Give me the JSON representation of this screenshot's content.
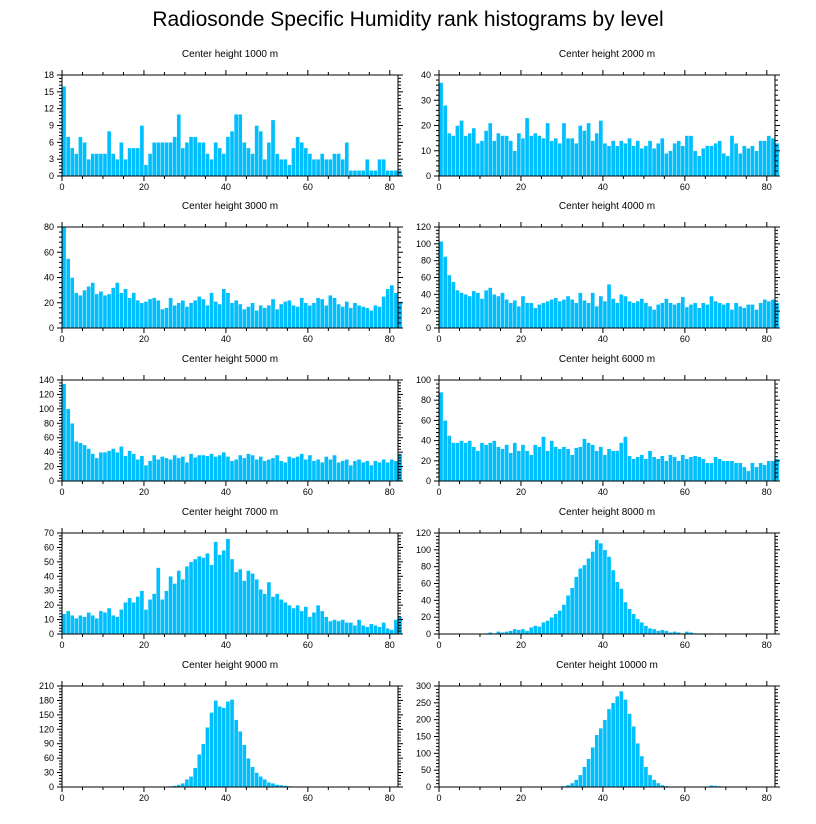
{
  "title": "Radiosonde Specific Humidity rank histograms by level",
  "colors": {
    "bar": "#00bfff",
    "bar_edge": "#ffffff",
    "axis": "#000000",
    "background": "#ffffff"
  },
  "chart_data": [
    {
      "type": "bar",
      "title": "Center height 1000 m",
      "xlim": [
        0,
        82
      ],
      "xticks": [
        0,
        20,
        40,
        60,
        80
      ],
      "ylim": [
        0,
        18
      ],
      "yticks": [
        0,
        3,
        6,
        9,
        12,
        15,
        18
      ],
      "values": [
        16,
        7,
        5,
        4,
        7,
        6,
        3,
        4,
        4,
        4,
        4,
        8,
        4,
        3,
        6,
        3,
        5,
        5,
        5,
        9,
        2,
        4,
        6,
        6,
        6,
        6,
        6,
        7,
        11,
        5,
        6,
        7,
        7,
        6,
        6,
        4,
        3,
        6,
        5,
        4,
        7,
        8,
        11,
        11,
        6,
        5,
        4,
        9,
        8,
        3,
        6,
        10,
        4,
        3,
        3,
        2,
        5,
        7,
        6,
        5,
        4,
        3,
        3,
        4,
        3,
        3,
        4,
        4,
        3,
        6,
        1,
        1,
        1,
        1,
        3,
        1,
        1,
        3,
        3,
        1,
        1,
        1,
        1
      ]
    },
    {
      "type": "bar",
      "title": "Center height 2000 m",
      "xlim": [
        0,
        82
      ],
      "xticks": [
        0,
        20,
        40,
        60,
        80
      ],
      "ylim": [
        0,
        40
      ],
      "yticks": [
        0,
        10,
        20,
        30,
        40
      ],
      "values": [
        37,
        28,
        17,
        16,
        20,
        22,
        16,
        17,
        19,
        13,
        14,
        18,
        21,
        14,
        17,
        16,
        16,
        14,
        10,
        17,
        15,
        23,
        16,
        17,
        16,
        15,
        21,
        14,
        15,
        13,
        21,
        15,
        15,
        13,
        20,
        18,
        21,
        14,
        17,
        22,
        13,
        12,
        14,
        12,
        14,
        13,
        15,
        12,
        14,
        11,
        12,
        14,
        11,
        13,
        15,
        9,
        10,
        13,
        14,
        12,
        16,
        16,
        10,
        8,
        11,
        12,
        12,
        13,
        14,
        9,
        8,
        16,
        13,
        9,
        12,
        11,
        12,
        10,
        14,
        14,
        16,
        15,
        13
      ]
    },
    {
      "type": "bar",
      "title": "Center height 3000 m",
      "xlim": [
        0,
        82
      ],
      "xticks": [
        0,
        20,
        40,
        60,
        80
      ],
      "ylim": [
        0,
        80
      ],
      "yticks": [
        0,
        20,
        40,
        60,
        80
      ],
      "values": [
        80,
        55,
        40,
        28,
        26,
        30,
        33,
        36,
        27,
        29,
        26,
        27,
        32,
        36,
        28,
        31,
        24,
        28,
        22,
        20,
        21,
        23,
        24,
        22,
        15,
        16,
        24,
        18,
        20,
        22,
        17,
        20,
        22,
        25,
        23,
        18,
        28,
        21,
        19,
        31,
        28,
        20,
        22,
        19,
        15,
        17,
        20,
        14,
        18,
        16,
        18,
        23,
        15,
        19,
        21,
        22,
        18,
        17,
        24,
        20,
        18,
        20,
        24,
        23,
        18,
        26,
        24,
        19,
        17,
        21,
        16,
        20,
        18,
        17,
        16,
        14,
        18,
        17,
        25,
        31,
        34,
        28,
        21
      ]
    },
    {
      "type": "bar",
      "title": "Center height 4000 m",
      "xlim": [
        0,
        82
      ],
      "xticks": [
        0,
        20,
        40,
        60,
        80
      ],
      "ylim": [
        0,
        120
      ],
      "yticks": [
        0,
        20,
        40,
        60,
        80,
        100,
        120
      ],
      "values": [
        103,
        85,
        63,
        55,
        45,
        42,
        40,
        38,
        44,
        42,
        35,
        45,
        48,
        40,
        38,
        42,
        34,
        30,
        33,
        26,
        38,
        30,
        30,
        24,
        28,
        30,
        32,
        34,
        36,
        32,
        34,
        38,
        34,
        30,
        42,
        33,
        30,
        42,
        26,
        38,
        32,
        52,
        35,
        30,
        40,
        38,
        32,
        30,
        32,
        35,
        30,
        26,
        22,
        28,
        30,
        35,
        30,
        28,
        30,
        37,
        25,
        28,
        30,
        24,
        30,
        28,
        38,
        32,
        30,
        28,
        30,
        22,
        30,
        26,
        24,
        28,
        28,
        22,
        30,
        34,
        32,
        34,
        30
      ]
    },
    {
      "type": "bar",
      "title": "Center height 5000 m",
      "xlim": [
        0,
        82
      ],
      "xticks": [
        0,
        20,
        40,
        60,
        80
      ],
      "ylim": [
        0,
        140
      ],
      "yticks": [
        0,
        20,
        40,
        60,
        80,
        100,
        120,
        140
      ],
      "values": [
        135,
        100,
        80,
        55,
        53,
        50,
        45,
        38,
        32,
        40,
        40,
        42,
        45,
        40,
        48,
        35,
        42,
        38,
        30,
        35,
        22,
        28,
        36,
        30,
        34,
        32,
        30,
        36,
        32,
        34,
        26,
        38,
        33,
        36,
        36,
        35,
        38,
        34,
        36,
        40,
        34,
        28,
        30,
        36,
        32,
        38,
        36,
        30,
        34,
        28,
        30,
        32,
        36,
        28,
        26,
        34,
        32,
        34,
        38,
        30,
        36,
        28,
        30,
        26,
        34,
        30,
        36,
        26,
        28,
        30,
        22,
        28,
        30,
        26,
        28,
        22,
        28,
        26,
        30,
        26,
        30,
        28,
        38
      ]
    },
    {
      "type": "bar",
      "title": "Center height 6000 m",
      "xlim": [
        0,
        82
      ],
      "xticks": [
        0,
        20,
        40,
        60,
        80
      ],
      "ylim": [
        0,
        100
      ],
      "yticks": [
        0,
        20,
        40,
        60,
        80,
        100
      ],
      "values": [
        88,
        60,
        45,
        38,
        38,
        40,
        38,
        40,
        34,
        30,
        38,
        36,
        38,
        40,
        34,
        32,
        36,
        28,
        38,
        30,
        36,
        30,
        26,
        36,
        34,
        44,
        30,
        40,
        34,
        32,
        34,
        32,
        26,
        33,
        34,
        42,
        38,
        36,
        30,
        34,
        26,
        32,
        30,
        30,
        38,
        44,
        25,
        22,
        24,
        26,
        22,
        30,
        24,
        22,
        25,
        20,
        26,
        24,
        20,
        26,
        22,
        24,
        25,
        24,
        22,
        18,
        18,
        24,
        22,
        20,
        20,
        20,
        18,
        18,
        14,
        10,
        18,
        14,
        18,
        16,
        20,
        20,
        22
      ]
    },
    {
      "type": "bar",
      "title": "Center height 7000 m",
      "xlim": [
        0,
        82
      ],
      "xticks": [
        0,
        20,
        40,
        60,
        80
      ],
      "ylim": [
        0,
        70
      ],
      "yticks": [
        0,
        10,
        20,
        30,
        40,
        50,
        60,
        70
      ],
      "values": [
        14,
        16,
        13,
        11,
        13,
        12,
        15,
        13,
        11,
        16,
        15,
        18,
        13,
        12,
        17,
        22,
        25,
        22,
        26,
        30,
        17,
        24,
        28,
        46,
        24,
        30,
        40,
        35,
        44,
        38,
        47,
        50,
        52,
        54,
        53,
        56,
        48,
        64,
        55,
        58,
        66,
        52,
        43,
        45,
        37,
        44,
        42,
        38,
        31,
        28,
        36,
        26,
        28,
        24,
        22,
        20,
        18,
        20,
        16,
        19,
        12,
        15,
        20,
        16,
        12,
        9,
        10,
        9,
        10,
        8,
        8,
        6,
        10,
        6,
        5,
        7,
        6,
        5,
        8,
        4,
        3,
        10,
        12
      ]
    },
    {
      "type": "bar",
      "title": "Center height 8000 m",
      "xlim": [
        0,
        82
      ],
      "xticks": [
        0,
        20,
        40,
        60,
        80
      ],
      "ylim": [
        0,
        120
      ],
      "yticks": [
        0,
        20,
        40,
        60,
        80,
        100,
        120
      ],
      "values": [
        0,
        0,
        0,
        0,
        0,
        0,
        0,
        0,
        0,
        0,
        0,
        1,
        2,
        1,
        3,
        2,
        3,
        4,
        6,
        5,
        6,
        4,
        8,
        10,
        9,
        14,
        16,
        20,
        24,
        28,
        35,
        46,
        55,
        68,
        78,
        82,
        90,
        98,
        112,
        108,
        100,
        92,
        76,
        62,
        54,
        38,
        30,
        24,
        18,
        14,
        10,
        7,
        6,
        4,
        5,
        4,
        2,
        3,
        2,
        1,
        3,
        2,
        1,
        1,
        1,
        0,
        1,
        0,
        1,
        0,
        0,
        0,
        0,
        0,
        0,
        1,
        0,
        0,
        1,
        0,
        0,
        0,
        0
      ]
    },
    {
      "type": "bar",
      "title": "Center height 9000 m",
      "xlim": [
        0,
        82
      ],
      "xticks": [
        0,
        20,
        40,
        60,
        80
      ],
      "ylim": [
        0,
        210
      ],
      "yticks": [
        0,
        30,
        60,
        90,
        120,
        150,
        180,
        210
      ],
      "values": [
        0,
        0,
        0,
        0,
        0,
        0,
        0,
        0,
        0,
        0,
        0,
        0,
        0,
        0,
        0,
        0,
        0,
        0,
        0,
        0,
        0,
        0,
        0,
        0,
        0,
        1,
        2,
        3,
        5,
        8,
        16,
        22,
        40,
        68,
        90,
        124,
        155,
        180,
        168,
        165,
        178,
        182,
        140,
        116,
        88,
        60,
        42,
        30,
        22,
        16,
        10,
        8,
        5,
        4,
        3,
        2,
        1,
        1,
        1,
        0,
        0,
        0,
        0,
        0,
        0,
        0,
        0,
        0,
        0,
        0,
        0,
        0,
        0,
        0,
        0,
        0,
        0,
        0,
        0,
        0,
        0,
        0,
        0
      ]
    },
    {
      "type": "bar",
      "title": "Center height 10000 m",
      "xlim": [
        0,
        82
      ],
      "xticks": [
        0,
        20,
        40,
        60,
        80
      ],
      "ylim": [
        0,
        300
      ],
      "yticks": [
        0,
        50,
        100,
        150,
        200,
        250,
        300
      ],
      "values": [
        0,
        0,
        0,
        0,
        0,
        0,
        0,
        0,
        0,
        0,
        0,
        0,
        0,
        0,
        0,
        0,
        0,
        0,
        0,
        0,
        0,
        0,
        0,
        0,
        0,
        0,
        0,
        0,
        0,
        1,
        3,
        6,
        12,
        22,
        36,
        60,
        84,
        118,
        155,
        175,
        200,
        232,
        250,
        270,
        285,
        260,
        218,
        180,
        130,
        92,
        60,
        36,
        22,
        12,
        6,
        3,
        2,
        1,
        0,
        0,
        0,
        0,
        0,
        0,
        0,
        0,
        5,
        4,
        3,
        2,
        0,
        0,
        0,
        0,
        0,
        0,
        0,
        0,
        0,
        0,
        0,
        0,
        0
      ]
    }
  ]
}
